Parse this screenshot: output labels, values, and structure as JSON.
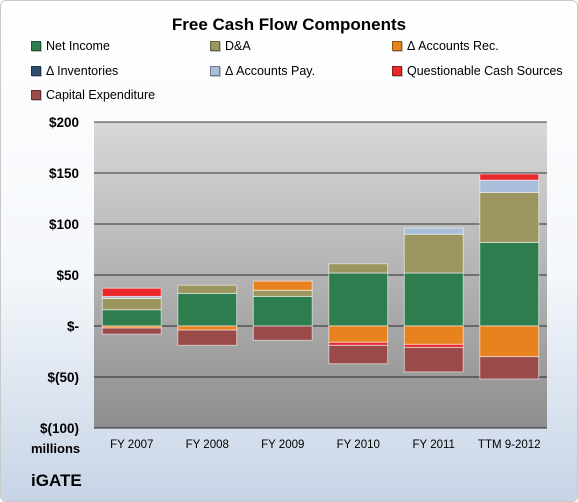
{
  "chart_data": {
    "type": "bar",
    "stacked": true,
    "title": "Free Cash Flow Components",
    "categories": [
      "FY 2007",
      "FY 2008",
      "FY 2009",
      "FY 2010",
      "FY 2011",
      "TTM 9-2012"
    ],
    "y_tick_labels": [
      "$200",
      "$150",
      "$100",
      "$50",
      "$-",
      "$(50)",
      "$(100)"
    ],
    "ylim": [
      -100,
      200
    ],
    "y_ticks": [
      200,
      150,
      100,
      50,
      0,
      -50,
      -100
    ],
    "units": "millions",
    "grid": true,
    "legend_position": "top",
    "series": [
      {
        "name": "Net Income",
        "color": "#2e7d4f",
        "values": [
          16,
          32,
          29,
          52,
          52,
          82
        ]
      },
      {
        "name": "D&A",
        "color": "#9b9560",
        "values": [
          11,
          8,
          6,
          9,
          38,
          49
        ]
      },
      {
        "name": "Δ Accounts Rec.",
        "color": "#e8821e",
        "values": [
          -2,
          -4,
          9,
          -16,
          -18,
          -30
        ]
      },
      {
        "name": "Δ Inventories",
        "color": "#2f4f6f",
        "values": [
          0,
          0,
          0,
          0,
          0,
          0
        ]
      },
      {
        "name": "Δ Accounts Pay.",
        "color": "#a8bedb",
        "values": [
          2,
          0,
          0,
          0,
          6,
          12
        ]
      },
      {
        "name": "Questionable Cash Sources",
        "color": "#e8282a",
        "values": [
          8,
          0,
          0,
          -3,
          -3,
          6
        ]
      },
      {
        "name": "Capital Expenditure",
        "color": "#9b4a4a",
        "values": [
          -6,
          -15,
          -14,
          -18,
          -24,
          -22
        ]
      }
    ]
  },
  "footer": {
    "units_label": "millions",
    "company_label": "iGATE"
  }
}
